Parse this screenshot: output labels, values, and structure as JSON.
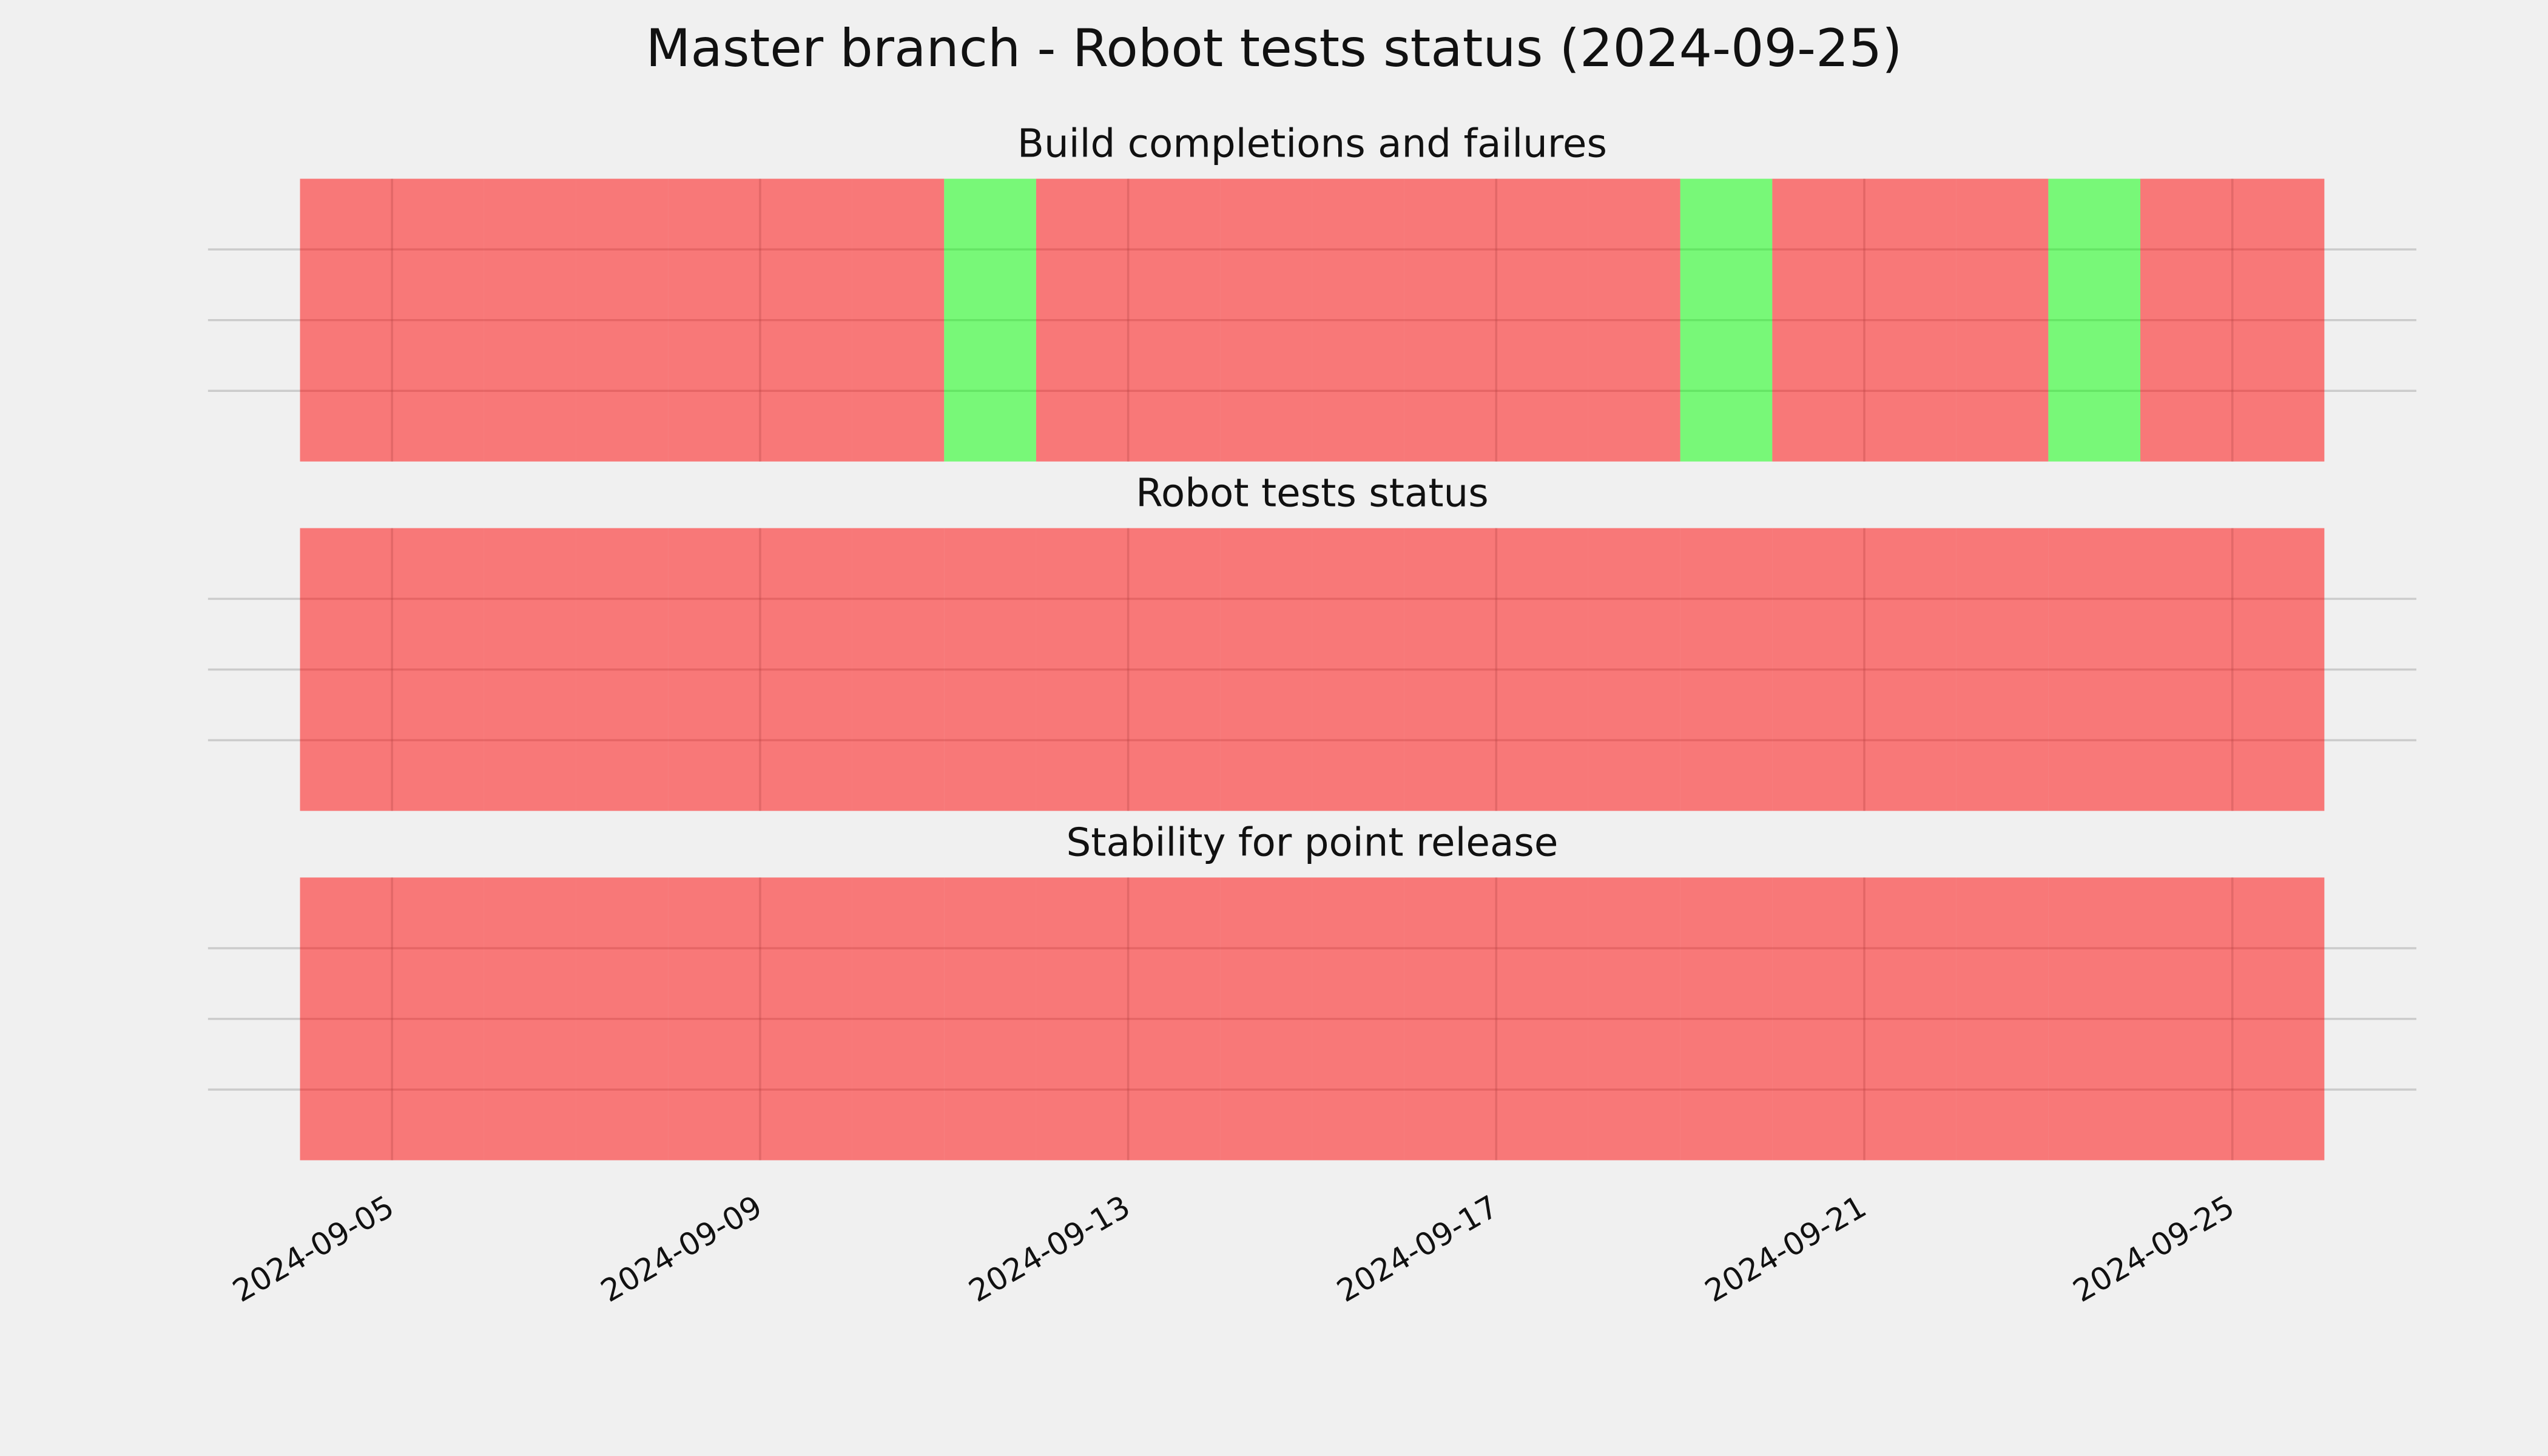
{
  "title": "Master branch - Robot tests status (2024-09-25)",
  "chart_data": [
    {
      "type": "bar",
      "title": "Build completions and failures",
      "x": [
        "2024-09-04",
        "2024-09-05",
        "2024-09-06",
        "2024-09-07",
        "2024-09-08",
        "2024-09-09",
        "2024-09-10",
        "2024-09-11",
        "2024-09-12",
        "2024-09-13",
        "2024-09-14",
        "2024-09-15",
        "2024-09-16",
        "2024-09-17",
        "2024-09-18",
        "2024-09-19",
        "2024-09-20",
        "2024-09-21",
        "2024-09-22",
        "2024-09-23",
        "2024-09-24",
        "2024-09-25"
      ],
      "values": [
        1,
        1,
        1,
        1,
        1,
        1,
        1,
        1,
        1,
        1,
        1,
        1,
        1,
        1,
        1,
        1,
        1,
        1,
        1,
        1,
        1,
        1
      ],
      "colors": [
        "#ff0000",
        "#ff0000",
        "#ff0000",
        "#ff0000",
        "#ff0000",
        "#ff0000",
        "#ff0000",
        "#00ff00",
        "#ff0000",
        "#ff0000",
        "#ff0000",
        "#ff0000",
        "#ff0000",
        "#ff0000",
        "#ff0000",
        "#00ff00",
        "#ff0000",
        "#ff0000",
        "#ff0000",
        "#00ff00",
        "#ff0000",
        "#ff0000"
      ],
      "alpha": 0.5,
      "xlim": [
        "2024-09-03",
        "2024-09-27"
      ],
      "xticks": [
        "2024-09-05",
        "2024-09-09",
        "2024-09-13",
        "2024-09-17",
        "2024-09-21",
        "2024-09-25"
      ],
      "ylim": [
        0,
        1
      ],
      "yticks": [
        0.25,
        0.5,
        0.75
      ],
      "grid": true
    },
    {
      "type": "bar",
      "title": "Robot tests status",
      "x": [
        "2024-09-04",
        "2024-09-05",
        "2024-09-06",
        "2024-09-07",
        "2024-09-08",
        "2024-09-09",
        "2024-09-10",
        "2024-09-11",
        "2024-09-12",
        "2024-09-13",
        "2024-09-14",
        "2024-09-15",
        "2024-09-16",
        "2024-09-17",
        "2024-09-18",
        "2024-09-19",
        "2024-09-20",
        "2024-09-21",
        "2024-09-22",
        "2024-09-23",
        "2024-09-24",
        "2024-09-25"
      ],
      "values": [
        1,
        1,
        1,
        1,
        1,
        1,
        1,
        1,
        1,
        1,
        1,
        1,
        1,
        1,
        1,
        1,
        1,
        1,
        1,
        1,
        1,
        1
      ],
      "colors": [
        "#ff0000",
        "#ff0000",
        "#ff0000",
        "#ff0000",
        "#ff0000",
        "#ff0000",
        "#ff0000",
        "#ff0000",
        "#ff0000",
        "#ff0000",
        "#ff0000",
        "#ff0000",
        "#ff0000",
        "#ff0000",
        "#ff0000",
        "#ff0000",
        "#ff0000",
        "#ff0000",
        "#ff0000",
        "#ff0000",
        "#ff0000",
        "#ff0000"
      ],
      "alpha": 0.5,
      "xlim": [
        "2024-09-03",
        "2024-09-27"
      ],
      "xticks": [
        "2024-09-05",
        "2024-09-09",
        "2024-09-13",
        "2024-09-17",
        "2024-09-21",
        "2024-09-25"
      ],
      "ylim": [
        0,
        1
      ],
      "yticks": [
        0.25,
        0.5,
        0.75
      ],
      "grid": true
    },
    {
      "type": "bar",
      "title": "Stability for point release",
      "x": [
        "2024-09-04",
        "2024-09-05",
        "2024-09-06",
        "2024-09-07",
        "2024-09-08",
        "2024-09-09",
        "2024-09-10",
        "2024-09-11",
        "2024-09-12",
        "2024-09-13",
        "2024-09-14",
        "2024-09-15",
        "2024-09-16",
        "2024-09-17",
        "2024-09-18",
        "2024-09-19",
        "2024-09-20",
        "2024-09-21",
        "2024-09-22",
        "2024-09-23",
        "2024-09-24",
        "2024-09-25"
      ],
      "values": [
        1,
        1,
        1,
        1,
        1,
        1,
        1,
        1,
        1,
        1,
        1,
        1,
        1,
        1,
        1,
        1,
        1,
        1,
        1,
        1,
        1,
        1
      ],
      "colors": [
        "#ff0000",
        "#ff0000",
        "#ff0000",
        "#ff0000",
        "#ff0000",
        "#ff0000",
        "#ff0000",
        "#ff0000",
        "#ff0000",
        "#ff0000",
        "#ff0000",
        "#ff0000",
        "#ff0000",
        "#ff0000",
        "#ff0000",
        "#ff0000",
        "#ff0000",
        "#ff0000",
        "#ff0000",
        "#ff0000",
        "#ff0000",
        "#ff0000"
      ],
      "alpha": 0.5,
      "xlim": [
        "2024-09-03",
        "2024-09-27"
      ],
      "xticks": [
        "2024-09-05",
        "2024-09-09",
        "2024-09-13",
        "2024-09-17",
        "2024-09-21",
        "2024-09-25"
      ],
      "ylim": [
        0,
        1
      ],
      "yticks": [
        0.25,
        0.5,
        0.75
      ],
      "grid": true
    }
  ]
}
